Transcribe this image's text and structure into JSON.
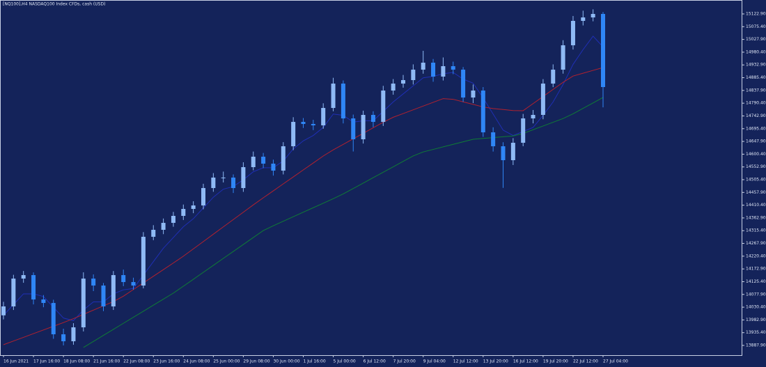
{
  "chart_data": {
    "type": "candlestick",
    "title": "[NQ100],H4  NASDAQ100 Index CFDs, cash (USD)",
    "categories": [
      "16 Jun 2021",
      null,
      null,
      "17 Jun 16:00",
      null,
      null,
      "18 Jun 08:00",
      null,
      null,
      "21 Jun 16:00",
      null,
      null,
      "22 Jun 08:00",
      null,
      null,
      "23 Jun 16:00",
      null,
      null,
      "24 Jun 08:00",
      null,
      null,
      "25 Jun 00:00",
      null,
      null,
      "29 Jun 08:00",
      null,
      null,
      "30 Jun 00:00",
      null,
      null,
      "1 Jul 16:00",
      null,
      null,
      "5 Jul 00:00",
      null,
      null,
      "6 Jul 12:00",
      null,
      null,
      "7 Jul 20:00",
      null,
      null,
      "9 Jul 04:00",
      null,
      null,
      "12 Jul 12:00",
      null,
      null,
      "13 Jul 20:00",
      null,
      null,
      "16 Jul 12:00",
      null,
      null,
      "19 Jul 20:00",
      null,
      null,
      "22 Jul 12:00",
      null,
      null,
      "27 Jul 04:00"
    ],
    "open": [
      14000.0,
      14033.2,
      14136.9,
      14149.9,
      14059.1,
      14046.1,
      13929.4,
      13903.4,
      13955.3,
      14136.9,
      14111.0,
      14033.2,
      14149.9,
      14124.0,
      14111.0,
      14292.6,
      14318.6,
      14344.5,
      14370.5,
      14396.4,
      14409.4,
      14474.2,
      14513.2,
      14513.2,
      14474.2,
      14552.1,
      14591.0,
      14565.1,
      14539.1,
      14629.9,
      14720.7,
      14713.0,
      14707.8,
      14772.6,
      14863.4,
      14733.7,
      14655.9,
      14746.7,
      14720.7,
      14837.5,
      14863.4,
      14876.4,
      14915.3,
      14941.3,
      14889.4,
      14928.3,
      14915.3,
      14811.5,
      14837.5,
      14681.8,
      14629.9,
      14578.0,
      14642.9,
      14733.7,
      14746.7,
      14863.4,
      14915.3,
      15006.1,
      15097.0,
      15109.9,
      15122.9
    ],
    "high": [
      14050.5,
      14151.0,
      14165.2,
      14160.0,
      14075.5,
      14058.0,
      13950.1,
      13970.8,
      14160.2,
      14152.5,
      14120.6,
      14165.0,
      14170.4,
      14140.2,
      14310.0,
      14335.9,
      14360.7,
      14385.3,
      14412.8,
      14425.0,
      14490.3,
      14530.0,
      14535.5,
      14525.0,
      14570.3,
      14610.2,
      14605.0,
      14580.0,
      14645.2,
      14738.1,
      14735.0,
      14728.4,
      14790.0,
      14885.0,
      14875.1,
      14748.0,
      14762.5,
      14760.3,
      14855.0,
      14880.2,
      14895.7,
      14935.0,
      14985.5,
      14955.0,
      14960.8,
      14945.1,
      14925.0,
      14860.0,
      14850.3,
      14700.5,
      14645.0,
      14660.1,
      14750.4,
      14765.0,
      14880.0,
      14935.0,
      15025.0,
      15115.3,
      15135.0,
      15140.0,
      15130.0
    ],
    "low": [
      13985.0,
      14020.0,
      14121.3,
      14040.7,
      14030.2,
      13912.6,
      13888.0,
      13890.4,
      13940.0,
      14090.3,
      14015.7,
      14020.1,
      14108.8,
      14095.6,
      14100.5,
      14280.1,
      14302.4,
      14330.0,
      14355.2,
      14380.6,
      14395.1,
      14460.4,
      14495.0,
      14455.8,
      14460.0,
      14540.5,
      14548.3,
      14520.6,
      14525.0,
      14615.5,
      14698.2,
      14690.1,
      14695.3,
      14760.2,
      14715.0,
      14610.4,
      14640.0,
      14700.8,
      14705.6,
      14822.0,
      14848.1,
      14860.0,
      14900.2,
      14870.3,
      14875.0,
      14898.4,
      14795.2,
      14790.7,
      14665.0,
      14610.2,
      14475.0,
      14560.0,
      14630.0,
      14715.2,
      14730.5,
      14850.1,
      14900.4,
      14990.2,
      15080.0,
      15095.4,
      14775.0
    ],
    "close": [
      14033.2,
      14136.9,
      14149.9,
      14059.1,
      14046.1,
      13929.4,
      13903.4,
      13955.3,
      14136.9,
      14111.0,
      14033.2,
      14149.9,
      14124.0,
      14111.0,
      14292.6,
      14318.6,
      14344.5,
      14370.5,
      14396.4,
      14409.4,
      14474.2,
      14513.2,
      14513.2,
      14474.2,
      14552.1,
      14591.0,
      14565.1,
      14539.1,
      14629.9,
      14720.7,
      14713.0,
      14707.8,
      14772.6,
      14863.4,
      14733.7,
      14655.9,
      14746.7,
      14720.7,
      14837.5,
      14863.4,
      14876.4,
      14915.3,
      14941.3,
      14889.4,
      14928.3,
      14915.3,
      14811.5,
      14837.5,
      14681.8,
      14629.9,
      14578.0,
      14642.9,
      14733.7,
      14746.7,
      14863.4,
      14915.3,
      15006.1,
      15097.0,
      15109.9,
      15122.9,
      14850.5
    ],
    "up_color": "#8fbaf5",
    "down_color": "#2f86f6",
    "lines": [
      {
        "color": "#1f2fb5",
        "values": [
          14000,
          14040,
          14080,
          14080,
          14070,
          14030,
          13990,
          13980,
          14020,
          14050,
          14050,
          14080,
          14095,
          14100,
          14150,
          14200,
          14250,
          14290,
          14330,
          14360,
          14400,
          14440,
          14470,
          14480,
          14505,
          14535,
          14550,
          14550,
          14575,
          14620,
          14650,
          14670,
          14700,
          14750,
          14745,
          14720,
          14725,
          14725,
          14760,
          14795,
          14825,
          14855,
          14885,
          14890,
          14900,
          14905,
          14880,
          14865,
          14810,
          14750,
          14690,
          14670,
          14685,
          14700,
          14745,
          14795,
          14860,
          14935,
          14990,
          15040,
          15000
        ]
      },
      {
        "color": "#b3212e",
        "values": [
          13890.5,
          13904.3,
          13918.0,
          13931.8,
          13945.5,
          13959.3,
          13973.1,
          13987.7,
          14003.6,
          14019.5,
          14035.3,
          14051.2,
          14071.4,
          14096.1,
          14120.8,
          14145.5,
          14170.3,
          14195.0,
          14220.3,
          14247.6,
          14274.9,
          14302.3,
          14329.6,
          14356.9,
          14384.2,
          14411.5,
          14437.9,
          14463.8,
          14489.8,
          14515.7,
          14541.7,
          14567.6,
          14593.6,
          14616.4,
          14637.0,
          14657.6,
          14678.2,
          14698.8,
          14719.3,
          14737.9,
          14751.8,
          14765.7,
          14779.6,
          14793.5,
          14807.4,
          14804.9,
          14795.4,
          14785.9,
          14776.4,
          14770.4,
          14766.7,
          14763.0,
          14762.4,
          14788.9,
          14815.3,
          14841.8,
          14868.2,
          14891.5,
          14902.0,
          14912.6,
          14923.1
        ]
      },
      {
        "color": "#0f7d35",
        "values": [
          null,
          null,
          null,
          null,
          null,
          null,
          null,
          null,
          13880.3,
          13902.8,
          13925.3,
          13947.8,
          13970.3,
          13992.8,
          14015.3,
          14037.8,
          14060.3,
          14082.8,
          14108.4,
          14134.3,
          14160.3,
          14186.2,
          14212.2,
          14238.1,
          14264.0,
          14290.0,
          14315.9,
          14333.7,
          14350.5,
          14367.4,
          14384.2,
          14401.0,
          14417.8,
          14434.6,
          14452.3,
          14472.5,
          14492.7,
          14513.0,
          14533.2,
          14553.4,
          14573.6,
          14593.8,
          14608.7,
          14618.1,
          14627.6,
          14637.0,
          14646.5,
          14655.9,
          14659.0,
          14662.1,
          14665.2,
          14668.3,
          14677.6,
          14691.5,
          14705.4,
          14719.3,
          14733.2,
          14750.8,
          14771.1,
          14791.4,
          14811.6
        ]
      }
    ],
    "ylim": [
      13851.6,
      15174.8
    ],
    "yticks": [
      {
        "value": 13887.9,
        "label": "13887.90"
      },
      {
        "value": 13935.4,
        "label": "13935.40"
      },
      {
        "value": 13982.9,
        "label": "13982.90"
      },
      {
        "value": 14030.4,
        "label": "14030.40"
      },
      {
        "value": 14077.9,
        "label": "14077.90"
      },
      {
        "value": 14125.4,
        "label": "14125.40"
      },
      {
        "value": 14172.9,
        "label": "14172.90"
      },
      {
        "value": 14220.4,
        "label": "14220.40"
      },
      {
        "value": 14267.9,
        "label": "14267.90"
      },
      {
        "value": 14315.4,
        "label": "14315.40"
      },
      {
        "value": 14362.9,
        "label": "14362.90"
      },
      {
        "value": 14410.4,
        "label": "14410.40"
      },
      {
        "value": 14457.9,
        "label": "14457.90"
      },
      {
        "value": 14505.4,
        "label": "14505.40"
      },
      {
        "value": 14552.9,
        "label": "14552.90"
      },
      {
        "value": 14600.4,
        "label": "14600.40"
      },
      {
        "value": 14647.9,
        "label": "14647.90"
      },
      {
        "value": 14695.4,
        "label": "14695.40"
      },
      {
        "value": 14742.9,
        "label": "14742.90"
      },
      {
        "value": 14790.4,
        "label": "14790.40"
      },
      {
        "value": 14837.9,
        "label": "14837.90"
      },
      {
        "value": 14885.4,
        "label": "14885.40"
      },
      {
        "value": 14932.9,
        "label": "14932.90"
      },
      {
        "value": 14980.4,
        "label": "14980.40"
      },
      {
        "value": 15027.9,
        "label": "15027.90"
      },
      {
        "value": 15075.4,
        "label": "15075.40"
      },
      {
        "value": 15122.9,
        "label": "15122.90"
      }
    ],
    "background": "#14235a",
    "grid": false
  }
}
